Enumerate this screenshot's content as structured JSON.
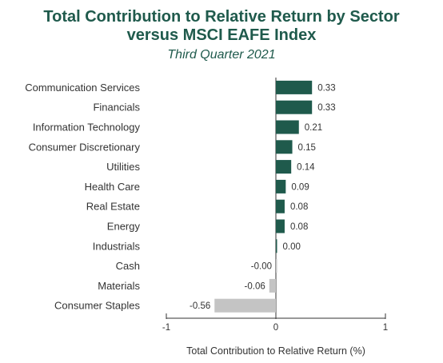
{
  "chart_data": {
    "type": "bar",
    "orientation": "horizontal",
    "title": "Total Contribution to Relative Return by Sector versus MSCI EAFE Index",
    "title_lines": [
      "Total Contribution to Relative Return by Sector",
      "versus MSCI EAFE Index"
    ],
    "subtitle": "Third Quarter 2021",
    "xlabel": "Total Contribution to Relative Return (%)",
    "ylabel": "",
    "xlim": [
      -1,
      1
    ],
    "xticks": [
      "-1",
      "0",
      "1"
    ],
    "grid": false,
    "legend": "none",
    "categories": [
      "Communication Services",
      "Financials",
      "Information Technology",
      "Consumer Discretionary",
      "Utilities",
      "Health Care",
      "Real Estate",
      "Energy",
      "Industrials",
      "Cash",
      "Materials",
      "Consumer Staples"
    ],
    "values": [
      0.33,
      0.33,
      0.21,
      0.15,
      0.14,
      0.09,
      0.08,
      0.08,
      0.0,
      -0.0,
      -0.06,
      -0.56
    ],
    "value_labels": [
      "0.33",
      "0.33",
      "0.21",
      "0.15",
      "0.14",
      "0.09",
      "0.08",
      "0.08",
      "0.00",
      "-0.00",
      "-0.06",
      "-0.56"
    ],
    "colors": {
      "positive": "#1f5a4c",
      "negative": "#c4c4c4",
      "title": "#1f5a4c",
      "axis": "#333333"
    }
  }
}
